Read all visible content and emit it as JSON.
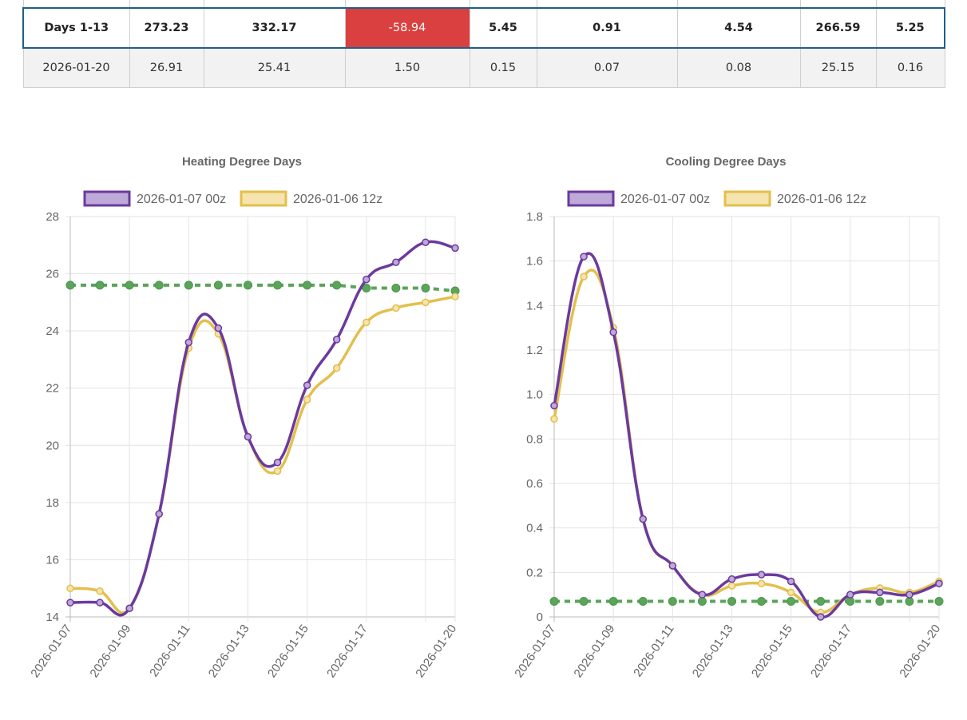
{
  "table": {
    "summary_row": [
      "Days 1-13",
      "273.23",
      "332.17",
      "-58.94",
      "5.45",
      "0.91",
      "4.54",
      "266.59",
      "5.25"
    ],
    "day_row": [
      "2026-01-20",
      "26.91",
      "25.41",
      "1.50",
      "0.15",
      "0.07",
      "0.08",
      "25.15",
      "0.16"
    ],
    "negative_color": "#d9403f"
  },
  "chart_data": [
    {
      "type": "line",
      "title": "Heating Degree Days",
      "x": [
        "2026-01-07",
        "2026-01-08",
        "2026-01-09",
        "2026-01-10",
        "2026-01-11",
        "2026-01-12",
        "2026-01-13",
        "2026-01-14",
        "2026-01-15",
        "2026-01-16",
        "2026-01-17",
        "2026-01-18",
        "2026-01-19",
        "2026-01-20"
      ],
      "x_tick_labels": [
        "2026-01-07",
        "2026-01-09",
        "2026-01-11",
        "2026-01-13",
        "2026-01-15",
        "2026-01-17",
        "2026-01-20"
      ],
      "ylim": [
        14,
        28
      ],
      "y_ticks": [
        "14",
        "16",
        "18",
        "20",
        "22",
        "24",
        "26",
        "28"
      ],
      "grid": true,
      "legend": "top",
      "series": [
        {
          "name": "2026-01-07 00z",
          "color": "#6b3a9e",
          "fill": "#bfa9d8",
          "values": [
            14.5,
            14.5,
            14.3,
            17.6,
            23.6,
            24.1,
            20.3,
            19.4,
            22.1,
            23.7,
            25.8,
            26.4,
            27.1,
            26.9
          ]
        },
        {
          "name": "2026-01-06 12z",
          "color": "#e3bf4d",
          "fill": "#f5e4ad",
          "values": [
            15.0,
            14.9,
            14.3,
            17.6,
            23.4,
            23.9,
            20.3,
            19.1,
            21.6,
            22.7,
            24.3,
            24.8,
            25.0,
            25.2
          ]
        },
        {
          "name": "",
          "color": "#5aa55a",
          "dashed": true,
          "values": [
            25.6,
            25.6,
            25.6,
            25.6,
            25.6,
            25.6,
            25.6,
            25.6,
            25.6,
            25.6,
            25.5,
            25.5,
            25.5,
            25.4
          ]
        }
      ]
    },
    {
      "type": "line",
      "title": "Cooling Degree Days",
      "x": [
        "2026-01-07",
        "2026-01-08",
        "2026-01-09",
        "2026-01-10",
        "2026-01-11",
        "2026-01-12",
        "2026-01-13",
        "2026-01-14",
        "2026-01-15",
        "2026-01-16",
        "2026-01-17",
        "2026-01-18",
        "2026-01-19",
        "2026-01-20"
      ],
      "x_tick_labels": [
        "2026-01-07",
        "2026-01-09",
        "2026-01-11",
        "2026-01-13",
        "2026-01-15",
        "2026-01-17",
        "2026-01-20"
      ],
      "ylim": [
        0,
        1.8
      ],
      "y_ticks": [
        "0",
        "0.2",
        "0.4",
        "0.6",
        "0.8",
        "1.0",
        "1.2",
        "1.4",
        "1.6",
        "1.8"
      ],
      "grid": true,
      "legend": "top",
      "series": [
        {
          "name": "2026-01-07 00z",
          "color": "#6b3a9e",
          "fill": "#bfa9d8",
          "values": [
            0.95,
            1.62,
            1.28,
            0.44,
            0.23,
            0.1,
            0.17,
            0.19,
            0.16,
            0.0,
            0.1,
            0.11,
            0.1,
            0.15
          ]
        },
        {
          "name": "2026-01-06 12z",
          "color": "#e3bf4d",
          "fill": "#f5e4ad",
          "values": [
            0.89,
            1.53,
            1.3,
            0.44,
            0.23,
            0.1,
            0.14,
            0.15,
            0.11,
            0.02,
            0.1,
            0.13,
            0.11,
            0.16
          ]
        },
        {
          "name": "",
          "color": "#5aa55a",
          "dashed": true,
          "values": [
            0.07,
            0.07,
            0.07,
            0.07,
            0.07,
            0.07,
            0.07,
            0.07,
            0.07,
            0.07,
            0.07,
            0.07,
            0.07,
            0.07
          ]
        }
      ]
    }
  ]
}
